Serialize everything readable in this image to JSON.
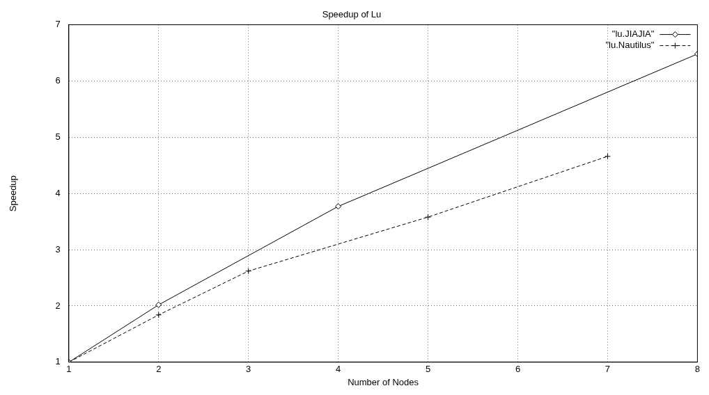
{
  "chart_data": {
    "type": "line",
    "title": "Speedup of Lu",
    "xlabel": "Number of Nodes",
    "ylabel": "Speedup",
    "xlim": [
      1,
      8
    ],
    "xticks": [
      1,
      2,
      3,
      4,
      5,
      6,
      7,
      8
    ],
    "ylim": [
      1,
      7
    ],
    "yticks": [
      1,
      2,
      3,
      4,
      5,
      6,
      7
    ],
    "grid": true,
    "legend": "top right",
    "series": [
      {
        "name": "\"lu.JIAJIA\"",
        "color": "#000000",
        "marker": "diamond",
        "line_style": "solid",
        "x": [
          1,
          2,
          4,
          8
        ],
        "values": [
          1,
          2.02,
          3.77,
          6.48
        ]
      },
      {
        "name": "\"lu.Nautilus\"",
        "color": "#000000",
        "marker": "cross",
        "line_style": "dashed",
        "x": [
          1,
          2,
          3,
          5,
          7
        ],
        "values": [
          1,
          1.84,
          2.62,
          3.58,
          4.66
        ]
      }
    ]
  }
}
